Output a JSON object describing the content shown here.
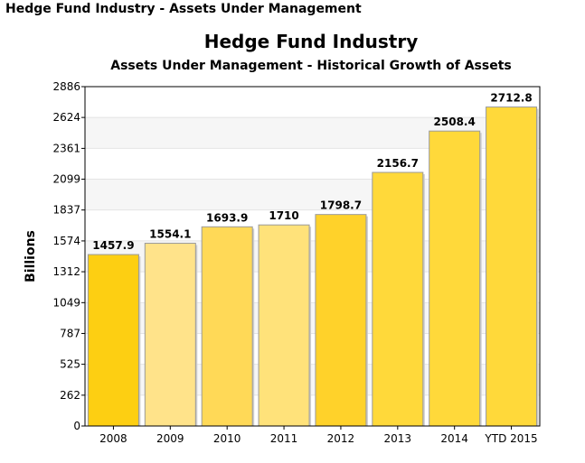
{
  "page_header": "Hedge Fund Industry - Assets Under Management",
  "chart_data": {
    "type": "bar",
    "title": "Hedge Fund Industry",
    "subtitle": "Assets Under Management - Historical Growth of Assets",
    "xlabel": "",
    "ylabel": "Billions",
    "categories": [
      "2008",
      "2009",
      "2010",
      "2011",
      "2012",
      "2013",
      "2014",
      "YTD 2015"
    ],
    "values": [
      1457.9,
      1554.1,
      1693.9,
      1710,
      1798.7,
      2156.7,
      2508.4,
      2712.8
    ],
    "value_labels": [
      "1457.9",
      "1554.1",
      "1693.9",
      "1710",
      "1798.7",
      "2156.7",
      "2508.4",
      "2712.8"
    ],
    "ylim": [
      0,
      2886
    ],
    "yticks": [
      0,
      262,
      525,
      787,
      1049,
      1312,
      1574,
      1837,
      2099,
      2361,
      2624,
      2886
    ],
    "bar_colors": [
      "#FDCF12",
      "#FFE38A",
      "#FFD957",
      "#FFE27A",
      "#FFD22A",
      "#FFD93A",
      "#FFD93A",
      "#FFD93A"
    ],
    "grid": true,
    "legend": "none"
  }
}
